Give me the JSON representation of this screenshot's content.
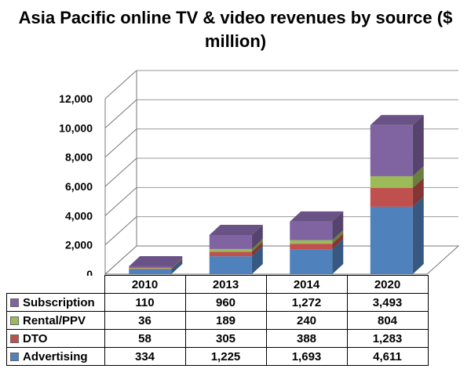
{
  "title": "Asia Pacific online TV & video revenues by source ($ million)",
  "chart_data": {
    "type": "bar",
    "stacked": true,
    "three_d": true,
    "categories": [
      "2010",
      "2013",
      "2014",
      "2020"
    ],
    "series": [
      {
        "name": "Advertising",
        "color": "#4F81BD",
        "values": [
          334,
          1225,
          1693,
          4611
        ],
        "labels": [
          "334",
          "1,225",
          "1,693",
          "4,611"
        ]
      },
      {
        "name": "DTO",
        "color": "#C0504D",
        "values": [
          58,
          305,
          388,
          1283
        ],
        "labels": [
          "58",
          "305",
          "388",
          "1,283"
        ]
      },
      {
        "name": "Rental/PPV",
        "color": "#9BBB59",
        "values": [
          36,
          189,
          240,
          804
        ],
        "labels": [
          "36",
          "189",
          "240",
          "804"
        ]
      },
      {
        "name": "Subscription",
        "color": "#8064A2",
        "values": [
          110,
          960,
          1272,
          3493
        ],
        "labels": [
          "110",
          "960",
          "1,272",
          "3,493"
        ]
      }
    ],
    "ylim": [
      0,
      12000
    ],
    "yticks": [
      0,
      2000,
      4000,
      6000,
      8000,
      10000,
      12000
    ],
    "ytick_labels": [
      "0",
      "2,000",
      "4,000",
      "6,000",
      "8,000",
      "10,000",
      "12,000"
    ],
    "grid": true,
    "legend": "data table below chart",
    "xlabel": "",
    "ylabel": ""
  }
}
